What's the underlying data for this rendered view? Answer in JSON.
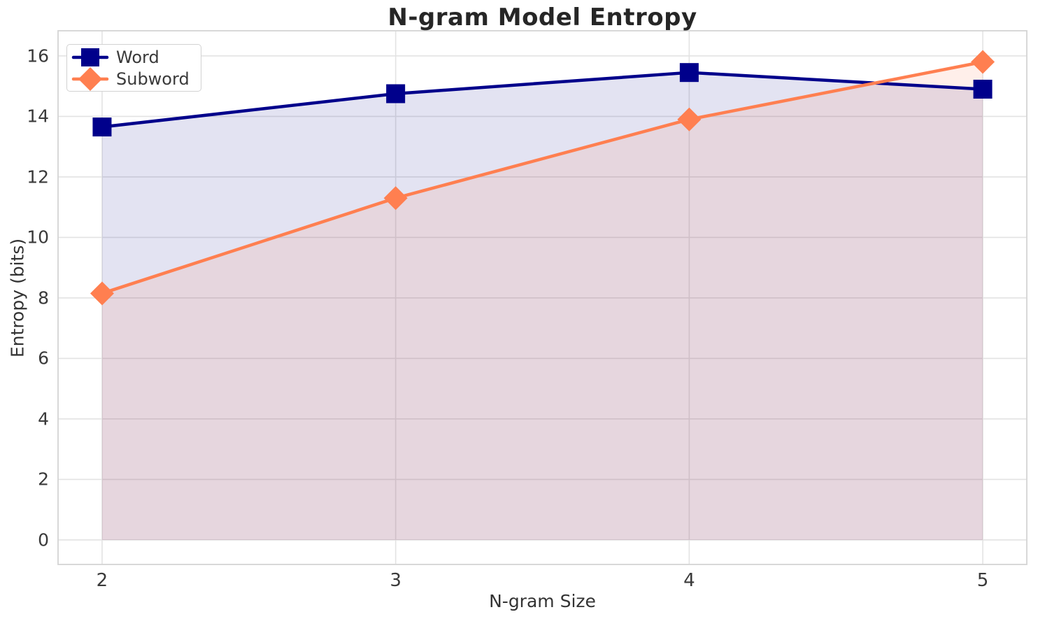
{
  "chart_data": {
    "type": "line",
    "title": "N-gram Model Entropy",
    "xlabel": "N-gram Size",
    "ylabel": "Entropy (bits)",
    "x": [
      2,
      3,
      4,
      5
    ],
    "x_tick_labels": [
      "2",
      "3",
      "4",
      "5"
    ],
    "y_ticks": [
      0,
      2,
      4,
      6,
      8,
      10,
      12,
      14,
      16
    ],
    "xlim": [
      1.85,
      5.15
    ],
    "ylim": [
      -0.81,
      16.83
    ],
    "grid": true,
    "background_color": "#ffffff",
    "grid_color": "#e3e3e3",
    "legend_position": "upper left",
    "series": [
      {
        "name": "Word",
        "color": "#00008b",
        "marker": "square",
        "fill_opacity": 0.11,
        "values": [
          13.65,
          14.75,
          15.45,
          14.9
        ]
      },
      {
        "name": "Subword",
        "color": "#ff7f50",
        "marker": "diamond",
        "fill_opacity": 0.12,
        "values": [
          8.15,
          11.3,
          13.9,
          15.8
        ]
      }
    ]
  }
}
